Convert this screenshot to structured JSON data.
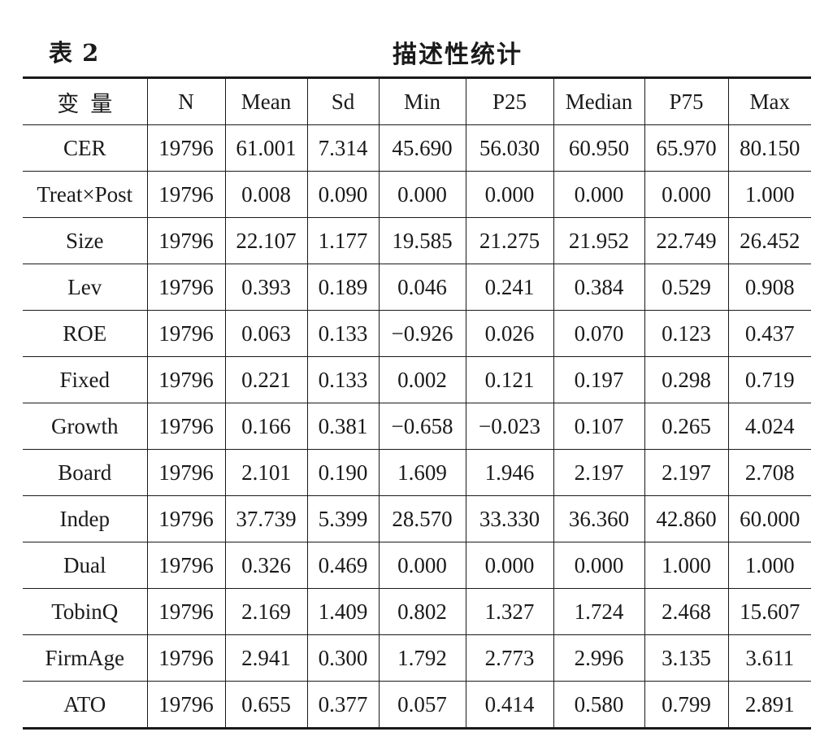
{
  "caption": {
    "label": "表 2",
    "title": "描述性统计"
  },
  "table": {
    "headers": [
      "变量",
      "N",
      "Mean",
      "Sd",
      "Min",
      "P25",
      "Median",
      "P75",
      "Max"
    ],
    "rows": [
      [
        "CER",
        "19796",
        "61.001",
        "7.314",
        "45.690",
        "56.030",
        "60.950",
        "65.970",
        "80.150"
      ],
      [
        "Treat×Post",
        "19796",
        "0.008",
        "0.090",
        "0.000",
        "0.000",
        "0.000",
        "0.000",
        "1.000"
      ],
      [
        "Size",
        "19796",
        "22.107",
        "1.177",
        "19.585",
        "21.275",
        "21.952",
        "22.749",
        "26.452"
      ],
      [
        "Lev",
        "19796",
        "0.393",
        "0.189",
        "0.046",
        "0.241",
        "0.384",
        "0.529",
        "0.908"
      ],
      [
        "ROE",
        "19796",
        "0.063",
        "0.133",
        "−0.926",
        "0.026",
        "0.070",
        "0.123",
        "0.437"
      ],
      [
        "Fixed",
        "19796",
        "0.221",
        "0.133",
        "0.002",
        "0.121",
        "0.197",
        "0.298",
        "0.719"
      ],
      [
        "Growth",
        "19796",
        "0.166",
        "0.381",
        "−0.658",
        "−0.023",
        "0.107",
        "0.265",
        "4.024"
      ],
      [
        "Board",
        "19796",
        "2.101",
        "0.190",
        "1.609",
        "1.946",
        "2.197",
        "2.197",
        "2.708"
      ],
      [
        "Indep",
        "19796",
        "37.739",
        "5.399",
        "28.570",
        "33.330",
        "36.360",
        "42.860",
        "60.000"
      ],
      [
        "Dual",
        "19796",
        "0.326",
        "0.469",
        "0.000",
        "0.000",
        "0.000",
        "1.000",
        "1.000"
      ],
      [
        "TobinQ",
        "19796",
        "2.169",
        "1.409",
        "0.802",
        "1.327",
        "1.724",
        "2.468",
        "15.607"
      ],
      [
        "FirmAge",
        "19796",
        "2.941",
        "0.300",
        "1.792",
        "2.773",
        "2.996",
        "3.135",
        "3.611"
      ],
      [
        "ATO",
        "19796",
        "0.655",
        "0.377",
        "0.057",
        "0.414",
        "0.580",
        "0.799",
        "2.891"
      ]
    ]
  }
}
